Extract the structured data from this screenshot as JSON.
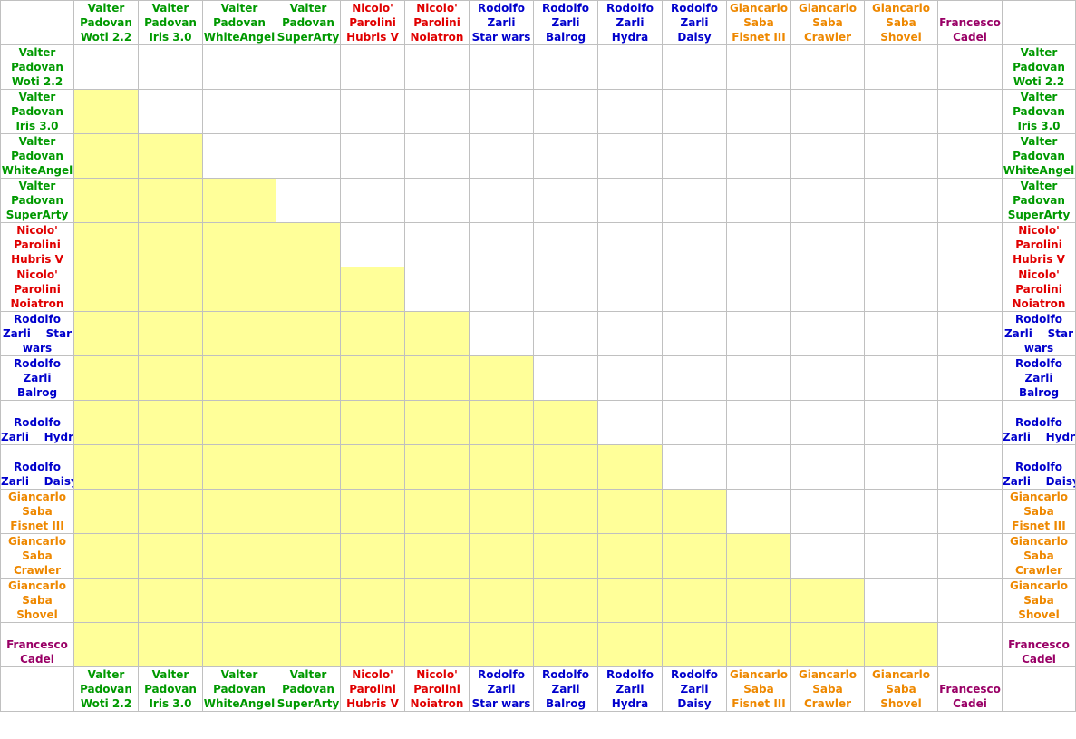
{
  "colors": {
    "Valter Padovan": "#009900",
    "Nicolo' Parolini": "#e00000",
    "Rodolfo Zarli": "#0000cc",
    "Giancarlo Saba": "#ee8800",
    "Francesco Cadei": "#990066",
    "filled_cell": "#ffff99",
    "grid": "#c0c0c0"
  },
  "entries": [
    {
      "pilot": "Valter Padovan",
      "line1": "Valter",
      "line2": "Padovan",
      "line3": "Woti 2.2"
    },
    {
      "pilot": "Valter Padovan",
      "line1": "Valter",
      "line2": "Padovan",
      "line3": "Iris 3.0"
    },
    {
      "pilot": "Valter Padovan",
      "line1": "Valter",
      "line2": "Padovan",
      "line3": "WhiteAngel"
    },
    {
      "pilot": "Valter Padovan",
      "line1": "Valter",
      "line2": "Padovan",
      "line3": "SuperArty"
    },
    {
      "pilot": "Nicolo' Parolini",
      "line1": "Nicolo'",
      "line2": "Parolini",
      "line3": "Hubris V"
    },
    {
      "pilot": "Nicolo' Parolini",
      "line1": "Nicolo'",
      "line2": "Parolini",
      "line3": "Noiatron"
    },
    {
      "pilot": "Rodolfo Zarli",
      "line1": "Rodolfo",
      "line2": "Zarli",
      "line3": "Star wars"
    },
    {
      "pilot": "Rodolfo Zarli",
      "line1": "Rodolfo",
      "line2": "Zarli",
      "line3": "Balrog"
    },
    {
      "pilot": "Rodolfo Zarli",
      "line1": "Rodolfo",
      "line2": "Zarli",
      "line3": "Hydra"
    },
    {
      "pilot": "Rodolfo Zarli",
      "line1": "Rodolfo",
      "line2": "Zarli",
      "line3": "Daisy"
    },
    {
      "pilot": "Giancarlo Saba",
      "line1": "Giancarlo",
      "line2": "Saba",
      "line3": "Fisnet III"
    },
    {
      "pilot": "Giancarlo Saba",
      "line1": "Giancarlo",
      "line2": "Saba",
      "line3": "Crawler"
    },
    {
      "pilot": "Giancarlo Saba",
      "line1": "Giancarlo",
      "line2": "Saba",
      "line3": "Shovel"
    },
    {
      "pilot": "Francesco Cadei",
      "line1": "Francesco",
      "line2": "Cadei",
      "line3": ""
    }
  ],
  "side_labels": [
    {
      "lines": [
        "Valter",
        "Padovan",
        "Woti 2.2"
      ]
    },
    {
      "lines": [
        "Valter",
        "Padovan",
        "Iris 3.0"
      ]
    },
    {
      "lines": [
        "Valter",
        "Padovan",
        "WhiteAngel"
      ]
    },
    {
      "lines": [
        "Valter",
        "Padovan",
        "SuperArty"
      ]
    },
    {
      "lines": [
        "Nicolo'",
        "Parolini",
        "Hubris V"
      ]
    },
    {
      "lines": [
        "Nicolo'",
        "Parolini",
        "Noiatron"
      ]
    },
    {
      "lines": [
        "Rodolfo",
        "Zarli    Star",
        "wars"
      ]
    },
    {
      "lines": [
        "Rodolfo",
        "Zarli",
        "Balrog"
      ]
    },
    {
      "lines": [
        "Rodolfo",
        "Zarli    Hydra"
      ]
    },
    {
      "lines": [
        "Rodolfo",
        "Zarli    Daisy"
      ]
    },
    {
      "lines": [
        "Giancarlo",
        "Saba",
        "Fisnet III"
      ]
    },
    {
      "lines": [
        "Giancarlo",
        "Saba",
        "Crawler"
      ]
    },
    {
      "lines": [
        "Giancarlo",
        "Saba",
        "Shovel"
      ]
    },
    {
      "lines": [
        "Francesco",
        "Cadei"
      ]
    }
  ]
}
